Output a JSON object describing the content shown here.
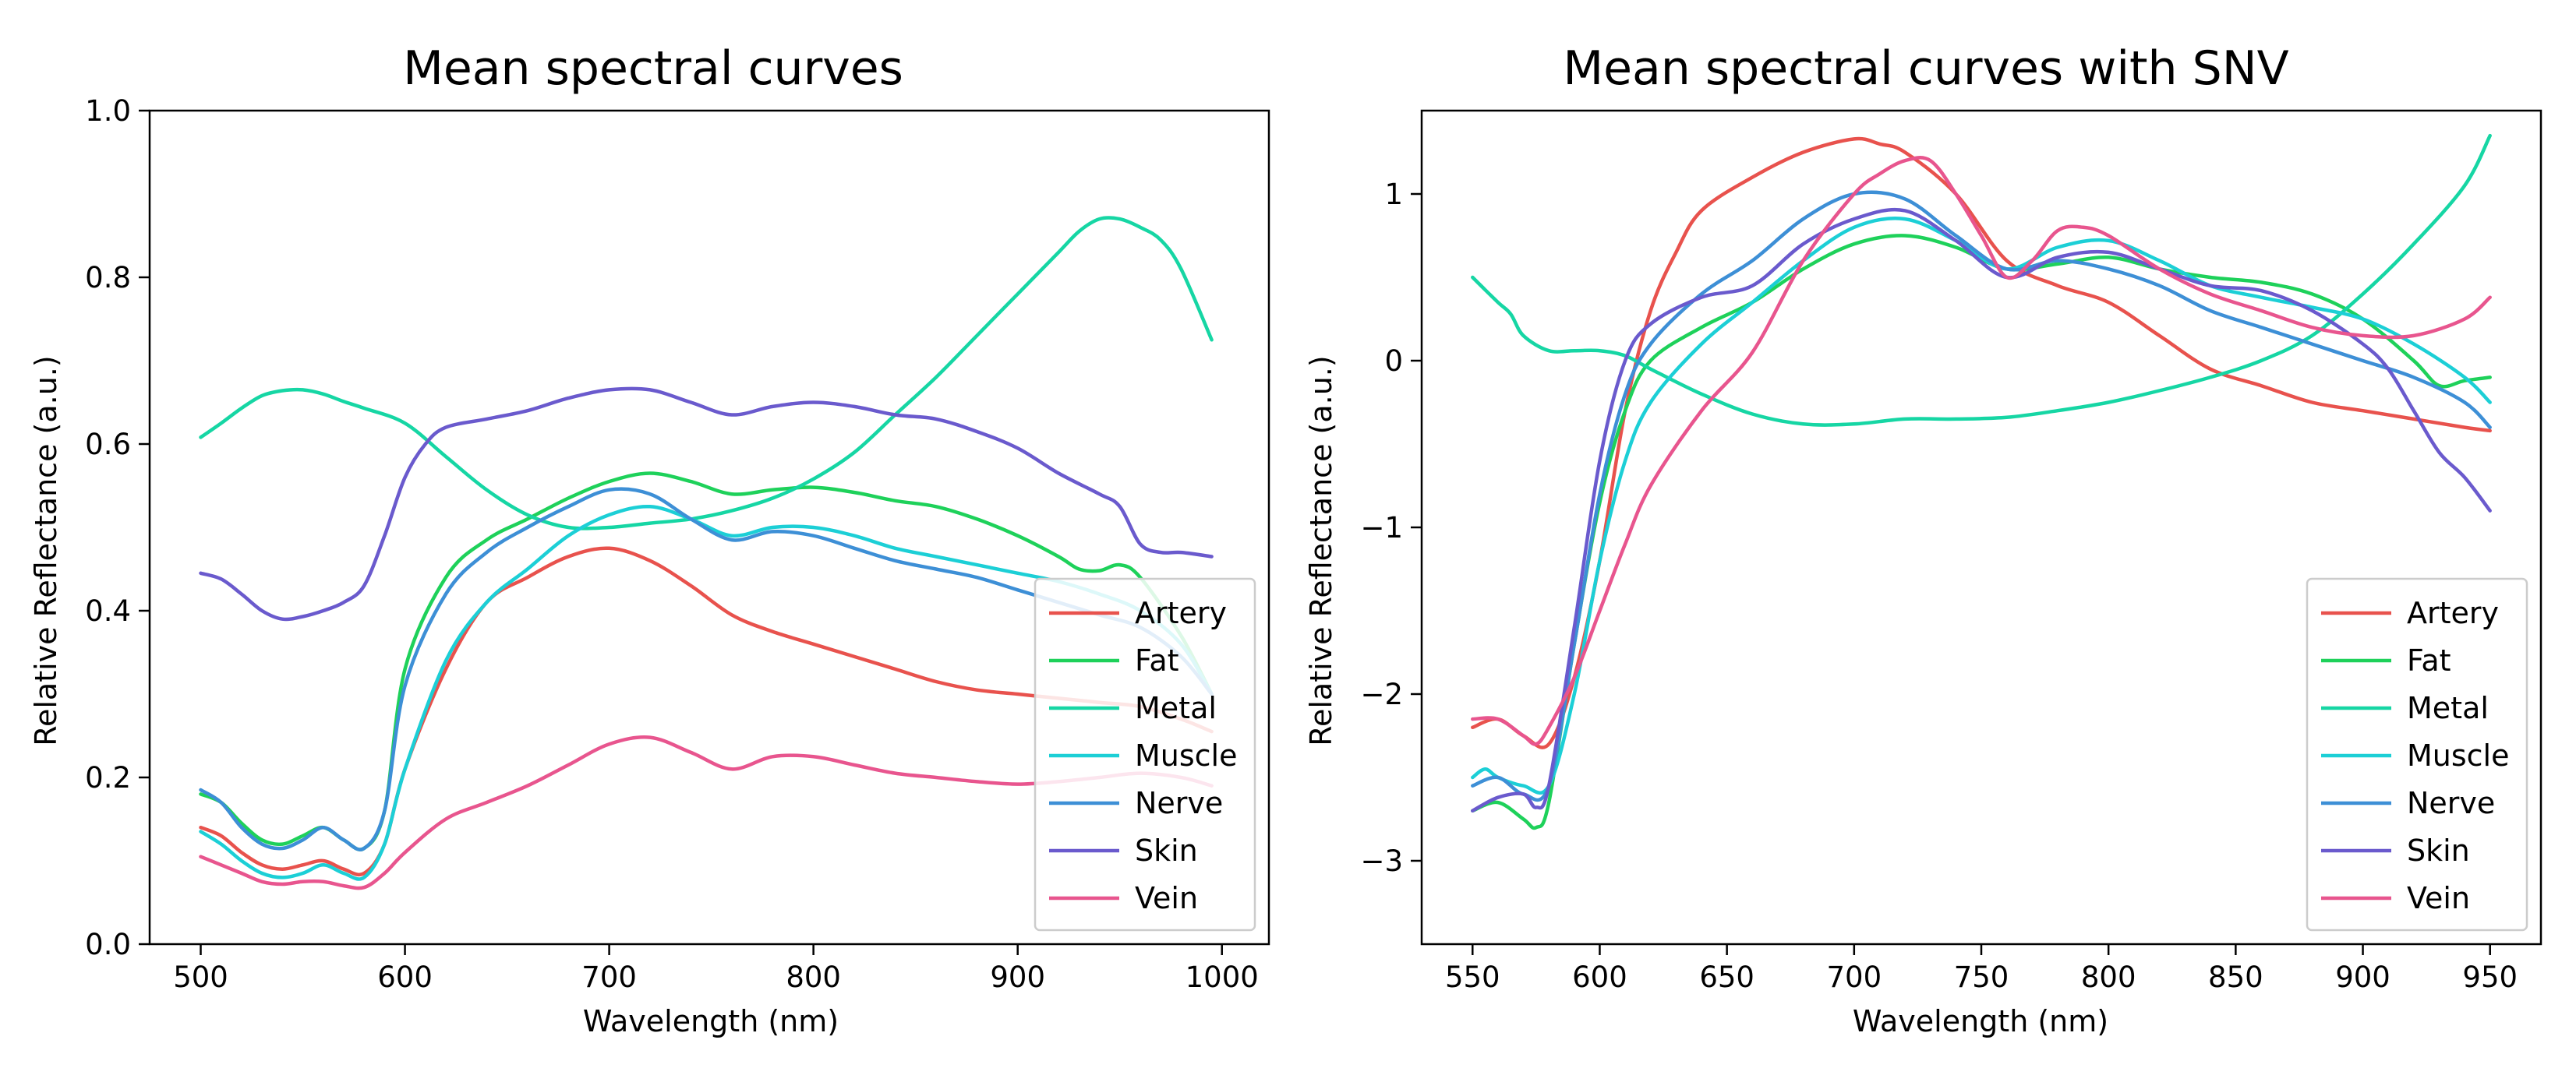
{
  "chart_data": [
    {
      "type": "line",
      "title": "Mean spectral curves",
      "xlabel": "Wavelength (nm)",
      "ylabel": "Relative Reflectance (a.u.)",
      "xlim": [
        475,
        1023
      ],
      "ylim": [
        0.0,
        1.0
      ],
      "xticks": [
        500,
        600,
        700,
        800,
        900,
        1000
      ],
      "yticks": [
        0.0,
        0.2,
        0.4,
        0.6,
        0.8,
        1.0
      ],
      "xtick_labels": [
        "500",
        "600",
        "700",
        "800",
        "900",
        "1000"
      ],
      "ytick_labels": [
        "0.0",
        "0.2",
        "0.4",
        "0.6",
        "0.8",
        "1.0"
      ],
      "grid": false,
      "legend": "lower right",
      "series": [
        {
          "name": "Artery",
          "color": "#e8524d",
          "x": [
            500,
            510,
            520,
            530,
            540,
            550,
            560,
            570,
            580,
            590,
            600,
            620,
            640,
            660,
            680,
            700,
            720,
            740,
            760,
            780,
            800,
            820,
            840,
            860,
            880,
            900,
            920,
            940,
            960,
            980,
            995
          ],
          "y": [
            0.14,
            0.13,
            0.11,
            0.095,
            0.09,
            0.095,
            0.1,
            0.09,
            0.085,
            0.12,
            0.21,
            0.33,
            0.41,
            0.44,
            0.465,
            0.475,
            0.46,
            0.43,
            0.395,
            0.375,
            0.36,
            0.345,
            0.33,
            0.315,
            0.305,
            0.3,
            0.295,
            0.29,
            0.285,
            0.27,
            0.255
          ]
        },
        {
          "name": "Fat",
          "color": "#1ed15a",
          "x": [
            500,
            510,
            520,
            530,
            540,
            550,
            560,
            570,
            580,
            590,
            600,
            620,
            640,
            660,
            680,
            700,
            720,
            740,
            760,
            780,
            800,
            820,
            840,
            860,
            880,
            900,
            920,
            930,
            940,
            950,
            960,
            980,
            995
          ],
          "y": [
            0.18,
            0.17,
            0.145,
            0.125,
            0.12,
            0.13,
            0.14,
            0.125,
            0.115,
            0.16,
            0.33,
            0.44,
            0.485,
            0.51,
            0.535,
            0.555,
            0.565,
            0.555,
            0.54,
            0.545,
            0.548,
            0.542,
            0.532,
            0.525,
            0.51,
            0.49,
            0.465,
            0.45,
            0.448,
            0.455,
            0.44,
            0.37,
            0.3
          ]
        },
        {
          "name": "Metal",
          "color": "#16d6a4",
          "x": [
            500,
            510,
            520,
            530,
            540,
            550,
            560,
            570,
            580,
            600,
            620,
            640,
            660,
            680,
            700,
            720,
            740,
            760,
            780,
            800,
            820,
            840,
            860,
            880,
            900,
            920,
            930,
            940,
            950,
            960,
            970,
            980,
            995
          ],
          "y": [
            0.608,
            0.625,
            0.643,
            0.658,
            0.664,
            0.665,
            0.66,
            0.651,
            0.643,
            0.625,
            0.585,
            0.545,
            0.515,
            0.5,
            0.5,
            0.505,
            0.51,
            0.52,
            0.535,
            0.558,
            0.59,
            0.635,
            0.68,
            0.73,
            0.78,
            0.83,
            0.855,
            0.87,
            0.87,
            0.86,
            0.845,
            0.81,
            0.725
          ]
        },
        {
          "name": "Muscle",
          "color": "#1ccfd6",
          "x": [
            500,
            510,
            520,
            530,
            540,
            550,
            560,
            570,
            580,
            590,
            600,
            620,
            640,
            660,
            680,
            700,
            720,
            740,
            760,
            780,
            800,
            820,
            840,
            860,
            880,
            900,
            920,
            940,
            960,
            980,
            995
          ],
          "y": [
            0.135,
            0.12,
            0.1,
            0.085,
            0.08,
            0.085,
            0.095,
            0.085,
            0.08,
            0.12,
            0.21,
            0.34,
            0.41,
            0.45,
            0.49,
            0.515,
            0.525,
            0.51,
            0.49,
            0.5,
            0.5,
            0.49,
            0.475,
            0.465,
            0.455,
            0.445,
            0.435,
            0.42,
            0.4,
            0.36,
            0.3
          ]
        },
        {
          "name": "Nerve",
          "color": "#3d8fd6",
          "x": [
            500,
            510,
            520,
            530,
            540,
            550,
            560,
            570,
            580,
            590,
            600,
            620,
            640,
            660,
            680,
            700,
            720,
            740,
            760,
            780,
            800,
            820,
            840,
            860,
            880,
            900,
            920,
            940,
            960,
            980,
            995
          ],
          "y": [
            0.185,
            0.17,
            0.14,
            0.12,
            0.115,
            0.125,
            0.14,
            0.125,
            0.115,
            0.16,
            0.31,
            0.42,
            0.47,
            0.5,
            0.525,
            0.545,
            0.54,
            0.51,
            0.485,
            0.495,
            0.49,
            0.475,
            0.46,
            0.45,
            0.44,
            0.425,
            0.41,
            0.395,
            0.38,
            0.345,
            0.3
          ]
        },
        {
          "name": "Skin",
          "color": "#6a5acd",
          "x": [
            500,
            510,
            520,
            530,
            540,
            550,
            560,
            570,
            580,
            590,
            600,
            610,
            620,
            640,
            660,
            680,
            700,
            720,
            740,
            760,
            780,
            800,
            820,
            840,
            860,
            880,
            900,
            920,
            940,
            950,
            960,
            970,
            980,
            995
          ],
          "y": [
            0.445,
            0.438,
            0.42,
            0.4,
            0.39,
            0.393,
            0.4,
            0.41,
            0.43,
            0.49,
            0.56,
            0.6,
            0.62,
            0.63,
            0.64,
            0.655,
            0.665,
            0.665,
            0.65,
            0.635,
            0.645,
            0.65,
            0.645,
            0.635,
            0.63,
            0.615,
            0.595,
            0.565,
            0.54,
            0.525,
            0.48,
            0.47,
            0.47,
            0.465
          ]
        },
        {
          "name": "Vein",
          "color": "#e8558e",
          "x": [
            500,
            510,
            520,
            530,
            540,
            550,
            560,
            570,
            580,
            590,
            600,
            620,
            640,
            660,
            680,
            700,
            720,
            740,
            760,
            780,
            800,
            820,
            840,
            860,
            880,
            900,
            920,
            940,
            960,
            980,
            995
          ],
          "y": [
            0.105,
            0.095,
            0.085,
            0.075,
            0.072,
            0.075,
            0.075,
            0.07,
            0.068,
            0.085,
            0.11,
            0.15,
            0.17,
            0.19,
            0.215,
            0.24,
            0.248,
            0.23,
            0.21,
            0.225,
            0.225,
            0.215,
            0.205,
            0.2,
            0.195,
            0.192,
            0.195,
            0.2,
            0.205,
            0.2,
            0.19
          ]
        }
      ],
      "legend_entries": [
        "Artery",
        "Fat",
        "Metal",
        "Muscle",
        "Nerve",
        "Skin",
        "Vein"
      ]
    },
    {
      "type": "line",
      "title": "Mean spectral curves with SNV",
      "xlabel": "Wavelength (nm)",
      "ylabel": "Relative Reflectance (a.u.)",
      "xlim": [
        530,
        970
      ],
      "ylim": [
        -3.5,
        1.5
      ],
      "xticks": [
        550,
        600,
        650,
        700,
        750,
        800,
        850,
        900,
        950
      ],
      "yticks": [
        -3,
        -2,
        -1,
        0,
        1
      ],
      "xtick_labels": [
        "550",
        "600",
        "650",
        "700",
        "750",
        "800",
        "850",
        "900",
        "950"
      ],
      "ytick_labels": [
        "−3",
        "−2",
        "−1",
        "0",
        "1"
      ],
      "grid": false,
      "legend": "lower right",
      "series": [
        {
          "name": "Artery",
          "color": "#e8524d",
          "x": [
            550,
            560,
            570,
            580,
            590,
            600,
            610,
            620,
            630,
            640,
            660,
            680,
            700,
            710,
            720,
            740,
            760,
            780,
            800,
            820,
            840,
            860,
            880,
            900,
            920,
            940,
            950
          ],
          "y": [
            -2.2,
            -2.15,
            -2.25,
            -2.3,
            -1.9,
            -1.2,
            -0.3,
            0.3,
            0.65,
            0.9,
            1.1,
            1.25,
            1.33,
            1.3,
            1.25,
            1.0,
            0.6,
            0.45,
            0.35,
            0.15,
            -0.05,
            -0.15,
            -0.25,
            -0.3,
            -0.35,
            -0.4,
            -0.42
          ]
        },
        {
          "name": "Fat",
          "color": "#1ed15a",
          "x": [
            550,
            560,
            570,
            575,
            580,
            590,
            600,
            610,
            620,
            640,
            660,
            680,
            700,
            720,
            740,
            760,
            780,
            800,
            820,
            840,
            860,
            880,
            900,
            920,
            930,
            940,
            950
          ],
          "y": [
            -2.7,
            -2.65,
            -2.75,
            -2.8,
            -2.65,
            -1.7,
            -0.85,
            -0.3,
            0.0,
            0.2,
            0.35,
            0.55,
            0.7,
            0.75,
            0.68,
            0.55,
            0.58,
            0.62,
            0.55,
            0.5,
            0.47,
            0.4,
            0.25,
            0.0,
            -0.15,
            -0.12,
            -0.1
          ]
        },
        {
          "name": "Metal",
          "color": "#16d6a4",
          "x": [
            550,
            560,
            565,
            570,
            580,
            590,
            600,
            610,
            620,
            640,
            660,
            680,
            700,
            720,
            740,
            760,
            780,
            800,
            820,
            840,
            860,
            880,
            900,
            920,
            940,
            950
          ],
          "y": [
            0.5,
            0.35,
            0.28,
            0.15,
            0.06,
            0.06,
            0.06,
            0.03,
            -0.05,
            -0.2,
            -0.32,
            -0.38,
            -0.38,
            -0.35,
            -0.35,
            -0.34,
            -0.3,
            -0.25,
            -0.18,
            -0.1,
            0.0,
            0.15,
            0.4,
            0.7,
            1.05,
            1.35
          ]
        },
        {
          "name": "Muscle",
          "color": "#1ccfd6",
          "x": [
            550,
            555,
            560,
            570,
            580,
            590,
            600,
            610,
            620,
            640,
            660,
            680,
            700,
            720,
            740,
            760,
            780,
            800,
            820,
            840,
            860,
            880,
            900,
            920,
            940,
            950
          ],
          "y": [
            -2.5,
            -2.45,
            -2.5,
            -2.55,
            -2.55,
            -2.0,
            -1.2,
            -0.6,
            -0.25,
            0.1,
            0.35,
            0.6,
            0.8,
            0.85,
            0.72,
            0.55,
            0.68,
            0.72,
            0.6,
            0.45,
            0.38,
            0.32,
            0.25,
            0.1,
            -0.1,
            -0.25
          ]
        },
        {
          "name": "Nerve",
          "color": "#3d8fd6",
          "x": [
            550,
            560,
            570,
            580,
            590,
            600,
            610,
            620,
            640,
            660,
            680,
            700,
            720,
            740,
            760,
            780,
            800,
            820,
            840,
            860,
            880,
            900,
            920,
            940,
            950
          ],
          "y": [
            -2.55,
            -2.5,
            -2.6,
            -2.55,
            -1.7,
            -0.8,
            -0.2,
            0.1,
            0.4,
            0.6,
            0.85,
            1.0,
            0.97,
            0.75,
            0.55,
            0.6,
            0.55,
            0.45,
            0.3,
            0.2,
            0.1,
            0.0,
            -0.1,
            -0.25,
            -0.4
          ]
        },
        {
          "name": "Skin",
          "color": "#6a5acd",
          "x": [
            550,
            560,
            570,
            575,
            580,
            590,
            600,
            610,
            620,
            640,
            660,
            680,
            700,
            720,
            740,
            760,
            780,
            800,
            820,
            840,
            860,
            880,
            900,
            910,
            920,
            930,
            940,
            950
          ],
          "y": [
            -2.7,
            -2.62,
            -2.6,
            -2.68,
            -2.55,
            -1.6,
            -0.6,
            0.0,
            0.22,
            0.38,
            0.45,
            0.7,
            0.85,
            0.9,
            0.72,
            0.5,
            0.62,
            0.65,
            0.55,
            0.45,
            0.42,
            0.3,
            0.1,
            -0.05,
            -0.3,
            -0.55,
            -0.7,
            -0.9
          ]
        },
        {
          "name": "Vein",
          "color": "#e8558e",
          "x": [
            550,
            560,
            570,
            575,
            580,
            590,
            600,
            610,
            620,
            640,
            660,
            680,
            700,
            710,
            720,
            730,
            740,
            750,
            760,
            770,
            780,
            790,
            800,
            820,
            840,
            860,
            880,
            900,
            920,
            940,
            950
          ],
          "y": [
            -2.15,
            -2.15,
            -2.25,
            -2.3,
            -2.2,
            -1.9,
            -1.5,
            -1.1,
            -0.75,
            -0.3,
            0.05,
            0.6,
            1.0,
            1.12,
            1.2,
            1.2,
            1.0,
            0.75,
            0.5,
            0.6,
            0.78,
            0.8,
            0.75,
            0.55,
            0.4,
            0.3,
            0.2,
            0.15,
            0.15,
            0.25,
            0.38
          ]
        }
      ],
      "legend_entries": [
        "Artery",
        "Fat",
        "Metal",
        "Muscle",
        "Nerve",
        "Skin",
        "Vein"
      ]
    }
  ]
}
